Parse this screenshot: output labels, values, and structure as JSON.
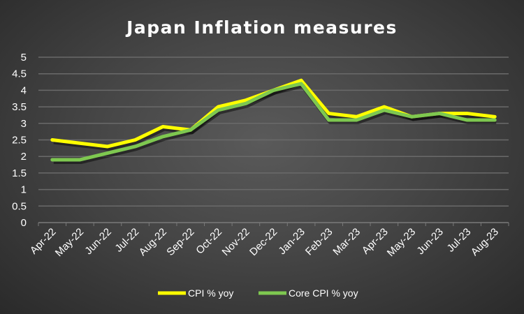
{
  "chart_data": {
    "type": "line",
    "title": "Japan Inflation measures",
    "xlabel": "",
    "ylabel": "",
    "ylim": [
      0,
      5
    ],
    "yticks": [
      "0",
      "0.5",
      "1",
      "1.5",
      "2",
      "2.5",
      "3",
      "3.5",
      "4",
      "4.5",
      "5"
    ],
    "grid": true,
    "legend_position": "bottom",
    "categories": [
      "Apr-22",
      "May-22",
      "Jun-22",
      "Jul-22",
      "Aug-22",
      "Sep-22",
      "Oct-22",
      "Nov-22",
      "Dec-22",
      "Jan-23",
      "Feb-23",
      "Mar-23",
      "Apr-23",
      "May-23",
      "Jun-23",
      "Jul-23",
      "Aug-23"
    ],
    "series": [
      {
        "name": "CPI % yoy",
        "color": "#ffff00",
        "values": [
          2.5,
          2.4,
          2.3,
          2.5,
          2.9,
          2.8,
          3.5,
          3.7,
          4.0,
          4.3,
          3.3,
          3.2,
          3.5,
          3.2,
          3.3,
          3.3,
          3.2
        ]
      },
      {
        "name": "Core CPI % yoy",
        "color": "#7ec850",
        "values": [
          1.9,
          1.9,
          2.1,
          2.3,
          2.6,
          2.8,
          3.4,
          3.6,
          4.0,
          4.2,
          3.1,
          3.1,
          3.4,
          3.2,
          3.3,
          3.1,
          3.1
        ]
      }
    ]
  }
}
